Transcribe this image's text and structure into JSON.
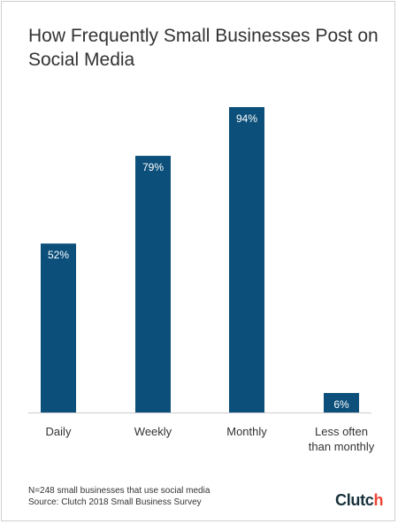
{
  "chart_data": {
    "type": "bar",
    "title": "How Frequently Small Businesses Post on Social Media",
    "categories": [
      "Daily",
      "Weekly",
      "Monthly",
      "Less often than monthly"
    ],
    "category_lines": [
      [
        "Daily"
      ],
      [
        "Weekly"
      ],
      [
        "Monthly"
      ],
      [
        "Less often",
        "than monthly"
      ]
    ],
    "values": [
      52,
      79,
      94,
      6
    ],
    "value_labels": [
      "52%",
      "79%",
      "94%",
      "6%"
    ],
    "ylim": [
      0,
      100
    ],
    "grid": false,
    "xlabel": "",
    "ylabel": "",
    "bar_color": "#0b4f7a",
    "label_color": "#ffffff",
    "axis_color": "#cccccc"
  },
  "footnote": {
    "sample": "N=248 small businesses that use social media",
    "source": "Source: Clutch 2018 Small Business Survey"
  },
  "brand": {
    "name_part": "Clutc",
    "name_tail": "h",
    "accent_color": "#ef4335"
  }
}
